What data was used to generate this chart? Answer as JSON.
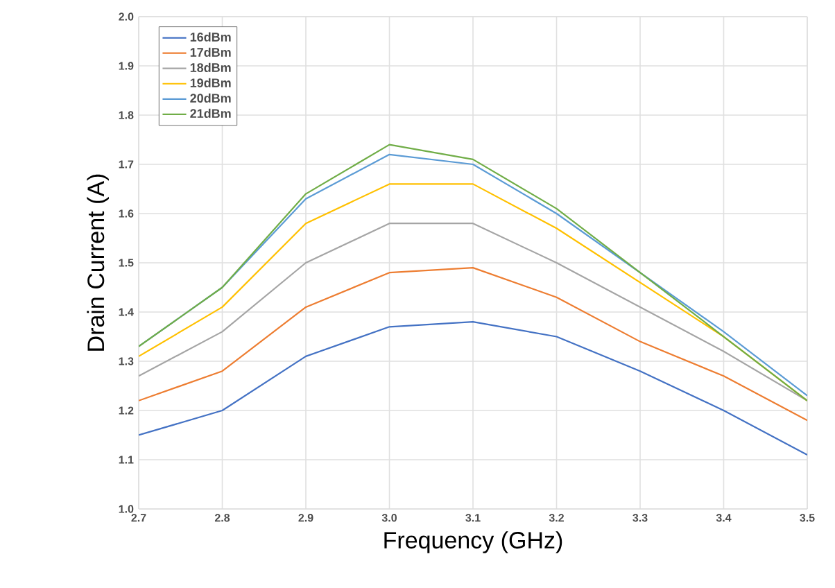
{
  "chart_data": {
    "type": "line",
    "xlabel": "Frequency (GHz)",
    "ylabel": "Drain Current (A)",
    "x": [
      2.7,
      2.8,
      2.9,
      3.0,
      3.1,
      3.2,
      3.3,
      3.4,
      3.5
    ],
    "series": [
      {
        "name": "16dBm",
        "color": "#4472c4",
        "values": [
          1.15,
          1.2,
          1.31,
          1.37,
          1.38,
          1.35,
          1.28,
          1.2,
          1.11
        ]
      },
      {
        "name": "17dBm",
        "color": "#ed7d31",
        "values": [
          1.22,
          1.28,
          1.41,
          1.48,
          1.49,
          1.43,
          1.34,
          1.27,
          1.18
        ]
      },
      {
        "name": "18dBm",
        "color": "#a5a5a5",
        "values": [
          1.27,
          1.36,
          1.5,
          1.58,
          1.58,
          1.5,
          1.41,
          1.32,
          1.22
        ]
      },
      {
        "name": "19dBm",
        "color": "#ffc000",
        "values": [
          1.31,
          1.41,
          1.58,
          1.66,
          1.66,
          1.57,
          1.46,
          1.35,
          1.22
        ]
      },
      {
        "name": "20dBm",
        "color": "#5b9bd5",
        "values": [
          1.33,
          1.45,
          1.63,
          1.72,
          1.7,
          1.6,
          1.48,
          1.36,
          1.23
        ]
      },
      {
        "name": "21dBm",
        "color": "#70ad47",
        "values": [
          1.33,
          1.45,
          1.64,
          1.74,
          1.71,
          1.61,
          1.48,
          1.35,
          1.22
        ]
      }
    ],
    "xlim": [
      2.7,
      3.5
    ],
    "ylim": [
      1.0,
      2.0
    ],
    "xticks": [
      {
        "value": 2.7,
        "label": "2.7"
      },
      {
        "value": 2.8,
        "label": "2.8"
      },
      {
        "value": 2.9,
        "label": "2.9"
      },
      {
        "value": 3.0,
        "label": "3.0"
      },
      {
        "value": 3.1,
        "label": "3.1"
      },
      {
        "value": 3.2,
        "label": "3.2"
      },
      {
        "value": 3.3,
        "label": "3.3"
      },
      {
        "value": 3.4,
        "label": "3.4"
      },
      {
        "value": 3.5,
        "label": "3.5"
      }
    ],
    "yticks": [
      {
        "value": 1.0,
        "label": "1.0"
      },
      {
        "value": 1.1,
        "label": "1.1"
      },
      {
        "value": 1.2,
        "label": "1.2"
      },
      {
        "value": 1.3,
        "label": "1.3"
      },
      {
        "value": 1.4,
        "label": "1.4"
      },
      {
        "value": 1.5,
        "label": "1.5"
      },
      {
        "value": 1.6,
        "label": "1.6"
      },
      {
        "value": 1.7,
        "label": "1.7"
      },
      {
        "value": 1.8,
        "label": "1.8"
      },
      {
        "value": 1.9,
        "label": "1.9"
      },
      {
        "value": 2.0,
        "label": "2.0"
      }
    ],
    "grid": true,
    "legend": "top left",
    "marker": "none",
    "line_style": "solid"
  }
}
